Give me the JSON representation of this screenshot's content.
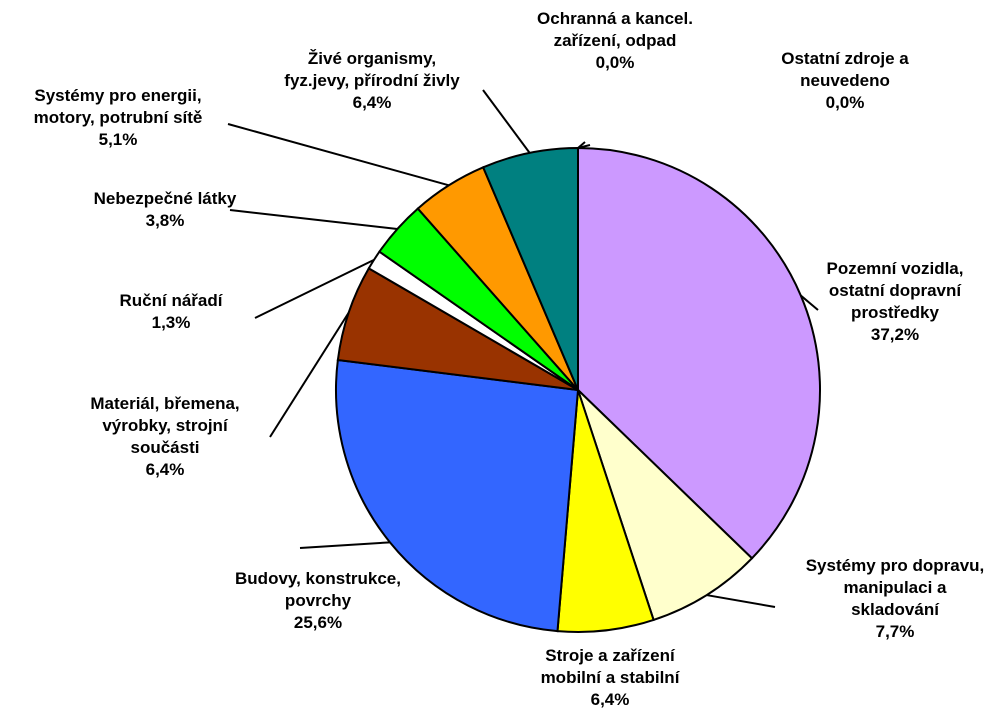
{
  "chart_data": {
    "type": "pie",
    "categories": [
      "Pozemní vozidla,\nostatní dopravní\nprostředky",
      "Systémy pro dopravu,\nmanipulaci a\nskladování",
      "Stroje a zařízení\nmobilní a stabilní",
      "Budovy, konstrukce,\npovrchy",
      "Materiál, břemena,\nvýrobky, strojní\nsoučásti",
      "Ruční nářadí",
      "Nebezpečné látky",
      "Systémy pro energii,\nmotory, potrubní sítě",
      "Živé organismy,\nfyz.jevy, přírodní živly",
      "Ochranná a kancel.\nzařízení, odpad",
      "Ostatní zdroje a\nneuvedeno"
    ],
    "values": [
      37.2,
      7.7,
      6.4,
      25.6,
      6.4,
      1.3,
      3.8,
      5.1,
      6.4,
      0.0,
      0.0
    ],
    "value_labels": [
      "37,2%",
      "7,7%",
      "6,4%",
      "25,6%",
      "6,4%",
      "1,3%",
      "3,8%",
      "5,1%",
      "6,4%",
      "0,0%",
      "0,0%"
    ],
    "colors": [
      "#CC99FF",
      "#FFFFCC",
      "#FFFF00",
      "#3366FF",
      "#993300",
      "#FFFFFF",
      "#00FF00",
      "#FF9900",
      "#008080",
      "#C0C0C0",
      "#808080"
    ]
  }
}
